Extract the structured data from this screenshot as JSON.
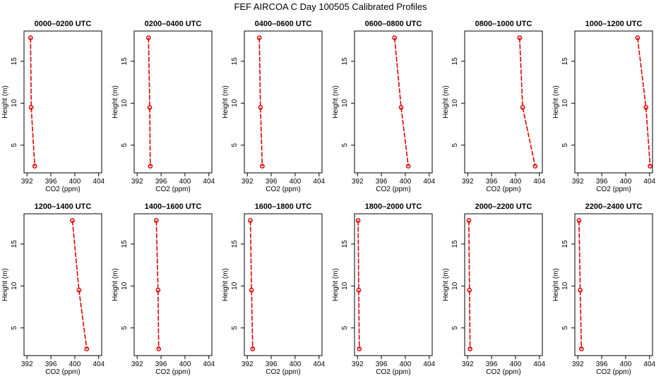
{
  "figure": {
    "title": "FEF AIRCOA C  Day 100505  Calibrated Profiles"
  },
  "chart_data": {
    "type": "line",
    "xlabel": "CO2 (ppm)",
    "ylabel": "Height (m)",
    "xlim": [
      391.5,
      404.5
    ],
    "ylim": [
      1.7,
      18.6
    ],
    "xticks": [
      392,
      396,
      400,
      404
    ],
    "yticks": [
      5,
      10,
      15
    ],
    "grid": false,
    "line_color": "#dd0000",
    "heights": [
      17.8,
      9.5,
      2.5
    ],
    "panels": [
      {
        "title": "0000–0200 UTC",
        "values": [
          392.6,
          392.7,
          393.3
        ]
      },
      {
        "title": "0200–0400 UTC",
        "values": [
          393.9,
          394.1,
          394.2
        ]
      },
      {
        "title": "0400–0600 UTC",
        "values": [
          394.0,
          394.2,
          394.5
        ]
      },
      {
        "title": "0600–0800 UTC",
        "values": [
          398.2,
          399.3,
          400.5
        ]
      },
      {
        "title": "0800–1000 UTC",
        "values": [
          400.7,
          401.2,
          403.3
        ]
      },
      {
        "title": "1000–1200 UTC",
        "values": [
          402.0,
          403.4,
          404.1
        ]
      },
      {
        "title": "1200–1400 UTC",
        "values": [
          399.6,
          400.7,
          402.0
        ]
      },
      {
        "title": "1400–1600 UTC",
        "values": [
          395.2,
          395.5,
          395.6
        ]
      },
      {
        "title": "1600–1800 UTC",
        "values": [
          392.5,
          392.7,
          392.9
        ]
      },
      {
        "title": "1800–2000 UTC",
        "values": [
          392.1,
          392.2,
          392.3
        ]
      },
      {
        "title": "2000–2200 UTC",
        "values": [
          392.2,
          392.3,
          392.4
        ]
      },
      {
        "title": "2200–2400 UTC",
        "values": [
          392.2,
          392.4,
          392.6
        ]
      }
    ]
  }
}
